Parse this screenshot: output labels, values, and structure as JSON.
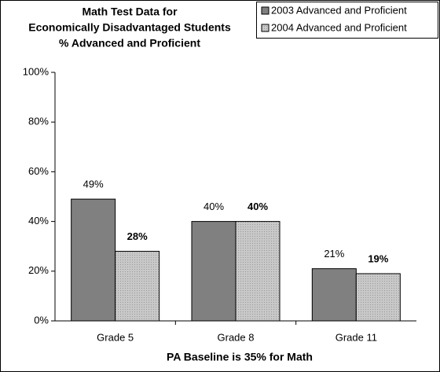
{
  "chart_data": {
    "type": "bar",
    "title": [
      "Math Test Data for",
      "Economically Disadvantaged Students",
      "% Advanced and Proficient"
    ],
    "x_label": "PA Baseline is 35% for Math",
    "categories": [
      "Grade 5",
      "Grade 8",
      "Grade 11"
    ],
    "series": [
      {
        "name": "2003 Advanced and Proficient",
        "color": "#808080",
        "values": [
          49,
          40,
          21
        ],
        "value_labels": [
          "49%",
          "40%",
          "21%"
        ]
      },
      {
        "name": "2004 Advanced and Proficient",
        "color": "#c8c8c8",
        "values": [
          28,
          40,
          19
        ],
        "value_labels": [
          "28%",
          "40%",
          "19%"
        ]
      }
    ],
    "ylim": [
      0,
      100
    ],
    "yticks": [
      {
        "value": 0,
        "label": "0%"
      },
      {
        "value": 20,
        "label": "20%"
      },
      {
        "value": 40,
        "label": "40%"
      },
      {
        "value": 60,
        "label": "60%"
      },
      {
        "value": 80,
        "label": "80%"
      },
      {
        "value": 100,
        "label": "100%"
      }
    ],
    "legend": "top-right"
  }
}
